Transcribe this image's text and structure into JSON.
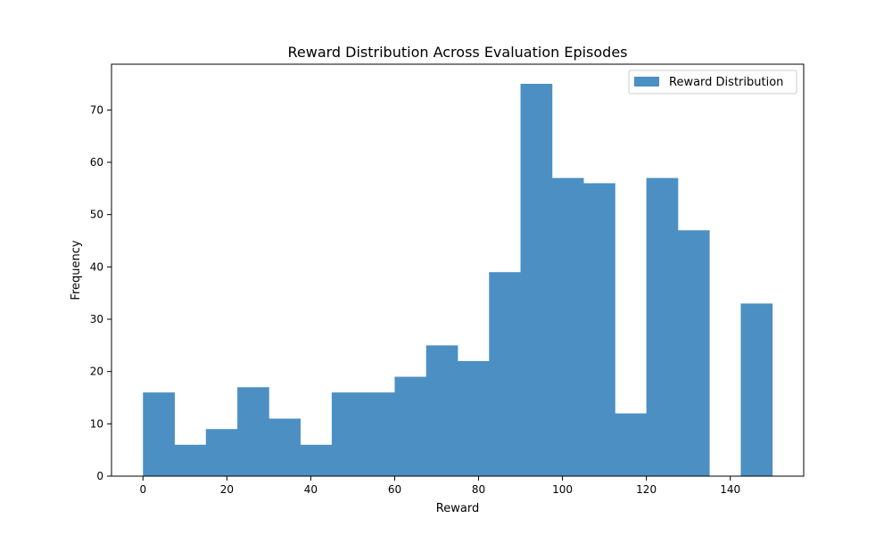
{
  "chart_data": {
    "type": "bar",
    "title": "Reward Distribution Across Evaluation Episodes",
    "xlabel": "Reward",
    "ylabel": "Frequency",
    "xlim": [
      -7.5,
      157.5
    ],
    "ylim": [
      0,
      78.75
    ],
    "xticks": [
      0,
      20,
      40,
      60,
      80,
      100,
      120,
      140
    ],
    "yticks": [
      0,
      10,
      20,
      30,
      40,
      50,
      60,
      70
    ],
    "bin_edges": [
      0,
      7.5,
      15,
      22.5,
      30,
      37.5,
      45,
      52.5,
      60,
      67.5,
      75,
      82.5,
      90,
      97.5,
      105,
      112.5,
      120,
      127.5,
      135,
      142.5,
      150
    ],
    "values": [
      16,
      6,
      9,
      17,
      11,
      6,
      16,
      16,
      19,
      25,
      22,
      39,
      75,
      57,
      56,
      12,
      57,
      47,
      0,
      33
    ],
    "series": [
      {
        "name": "Reward Distribution",
        "color": "#4c8fc3"
      }
    ],
    "grid": false,
    "legend": "top-right"
  }
}
